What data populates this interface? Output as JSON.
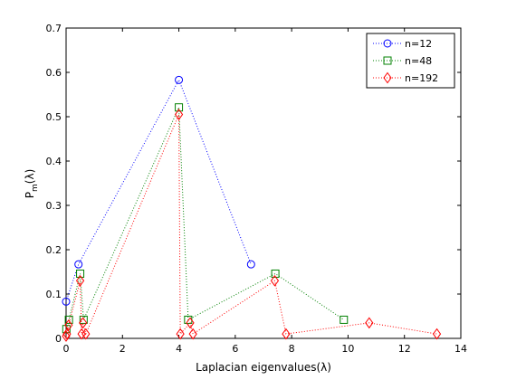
{
  "chart_data": {
    "type": "line",
    "title": "",
    "xlabel": "Laplacian eigenvalues(λ)",
    "ylabel_main": "P",
    "ylabel_sub": "m",
    "ylabel_tail": "(λ)",
    "xlim": [
      0,
      14
    ],
    "ylim": [
      0,
      0.7
    ],
    "xticks": [
      "0",
      "2",
      "4",
      "6",
      "8",
      "10",
      "12",
      "14"
    ],
    "yticks": [
      "0",
      "0.1",
      "0.2",
      "0.3",
      "0.4",
      "0.5",
      "0.6",
      "0.7"
    ],
    "grid": false,
    "legend_position": "top-right",
    "series": [
      {
        "name": "n=12",
        "color": "#0000ff",
        "marker": "circle",
        "linestyle": "dotted",
        "points": [
          [
            0,
            0.083
          ],
          [
            0.44,
            0.167
          ],
          [
            4.0,
            0.583
          ],
          [
            6.56,
            0.167
          ]
        ]
      },
      {
        "name": "n=48",
        "color": "#008000",
        "marker": "square",
        "linestyle": "dotted",
        "points": [
          [
            0.01,
            0.021
          ],
          [
            0.1,
            0.042
          ],
          [
            0.5,
            0.146
          ],
          [
            0.62,
            0.042
          ],
          [
            4.0,
            0.521
          ],
          [
            4.33,
            0.042
          ],
          [
            7.42,
            0.146
          ],
          [
            9.85,
            0.042
          ]
        ]
      },
      {
        "name": "n=192",
        "color": "#ff0000",
        "marker": "diamond",
        "linestyle": "dotted",
        "points": [
          [
            0.0,
            0.005
          ],
          [
            0.03,
            0.01
          ],
          [
            0.09,
            0.03
          ],
          [
            0.5,
            0.13
          ],
          [
            0.55,
            0.01
          ],
          [
            0.6,
            0.035
          ],
          [
            0.7,
            0.01
          ],
          [
            4.0,
            0.505
          ],
          [
            4.05,
            0.01
          ],
          [
            4.4,
            0.035
          ],
          [
            4.5,
            0.01
          ],
          [
            7.4,
            0.13
          ],
          [
            7.8,
            0.01
          ],
          [
            10.75,
            0.035
          ],
          [
            13.15,
            0.01
          ]
        ]
      }
    ]
  }
}
